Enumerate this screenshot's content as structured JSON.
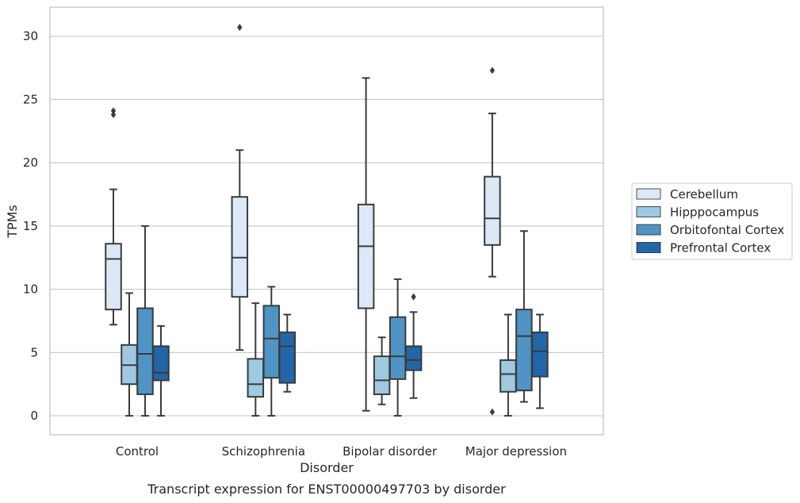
{
  "chart_data": {
    "type": "box",
    "title": "",
    "caption": "Transcript expression for ENST00000497703 by disorder",
    "xlabel": "Disorder",
    "ylabel": "TPMs",
    "ylim": [
      -1.5,
      32.3
    ],
    "yticks": [
      0,
      5,
      10,
      15,
      20,
      25,
      30
    ],
    "grid": "horizontal",
    "legend_position": "right",
    "categories": [
      "Control",
      "Schizophrenia",
      "Bipolar disorder",
      "Major depression"
    ],
    "series": [
      {
        "name": "Cerebellum",
        "color": "#dbe9f6",
        "boxes": [
          {
            "whisker_low": 7.2,
            "q1": 8.4,
            "median": 12.4,
            "q3": 13.6,
            "whisker_high": 17.9,
            "outliers": [
              23.8,
              24.1
            ]
          },
          {
            "whisker_low": 5.2,
            "q1": 9.4,
            "median": 12.5,
            "q3": 17.3,
            "whisker_high": 21.0,
            "outliers": [
              30.7
            ]
          },
          {
            "whisker_low": 0.4,
            "q1": 8.5,
            "median": 13.4,
            "q3": 16.7,
            "whisker_high": 26.7,
            "outliers": []
          },
          {
            "whisker_low": 11.0,
            "q1": 13.5,
            "median": 15.6,
            "q3": 18.9,
            "whisker_high": 23.9,
            "outliers": [
              27.3,
              0.3
            ]
          }
        ]
      },
      {
        "name": "Hipppocampus",
        "color": "#9ecae1",
        "boxes": [
          {
            "whisker_low": 0.0,
            "q1": 2.5,
            "median": 4.0,
            "q3": 5.6,
            "whisker_high": 9.7,
            "outliers": []
          },
          {
            "whisker_low": 0.0,
            "q1": 1.5,
            "median": 2.5,
            "q3": 4.5,
            "whisker_high": 8.9,
            "outliers": []
          },
          {
            "whisker_low": 0.9,
            "q1": 1.7,
            "median": 2.8,
            "q3": 4.7,
            "whisker_high": 6.2,
            "outliers": []
          },
          {
            "whisker_low": 0.0,
            "q1": 1.9,
            "median": 3.3,
            "q3": 4.4,
            "whisker_high": 8.0,
            "outliers": []
          }
        ]
      },
      {
        "name": "Orbitofontal Cortex",
        "color": "#4f94c4",
        "boxes": [
          {
            "whisker_low": 0.0,
            "q1": 1.7,
            "median": 4.9,
            "q3": 8.5,
            "whisker_high": 15.0,
            "outliers": []
          },
          {
            "whisker_low": 0.0,
            "q1": 3.0,
            "median": 6.1,
            "q3": 8.7,
            "whisker_high": 10.2,
            "outliers": []
          },
          {
            "whisker_low": 0.0,
            "q1": 2.9,
            "median": 4.7,
            "q3": 7.8,
            "whisker_high": 10.8,
            "outliers": []
          },
          {
            "whisker_low": 1.1,
            "q1": 2.0,
            "median": 6.3,
            "q3": 8.4,
            "whisker_high": 14.6,
            "outliers": []
          }
        ]
      },
      {
        "name": "Prefrontal Cortex",
        "color": "#2266a8",
        "boxes": [
          {
            "whisker_low": 0.0,
            "q1": 2.8,
            "median": 3.4,
            "q3": 5.5,
            "whisker_high": 7.1,
            "outliers": []
          },
          {
            "whisker_low": 1.9,
            "q1": 2.6,
            "median": 5.5,
            "q3": 6.6,
            "whisker_high": 8.0,
            "outliers": []
          },
          {
            "whisker_low": 1.4,
            "q1": 3.6,
            "median": 4.4,
            "q3": 5.5,
            "whisker_high": 8.2,
            "outliers": [
              9.4
            ]
          },
          {
            "whisker_low": 0.6,
            "q1": 3.1,
            "median": 5.1,
            "q3": 6.6,
            "whisker_high": 8.0,
            "outliers": []
          }
        ]
      }
    ]
  },
  "colors": {
    "box_edge": "#3b3b3b",
    "grid": "#cccccc",
    "spine": "#cccccc",
    "text": "#262626"
  }
}
